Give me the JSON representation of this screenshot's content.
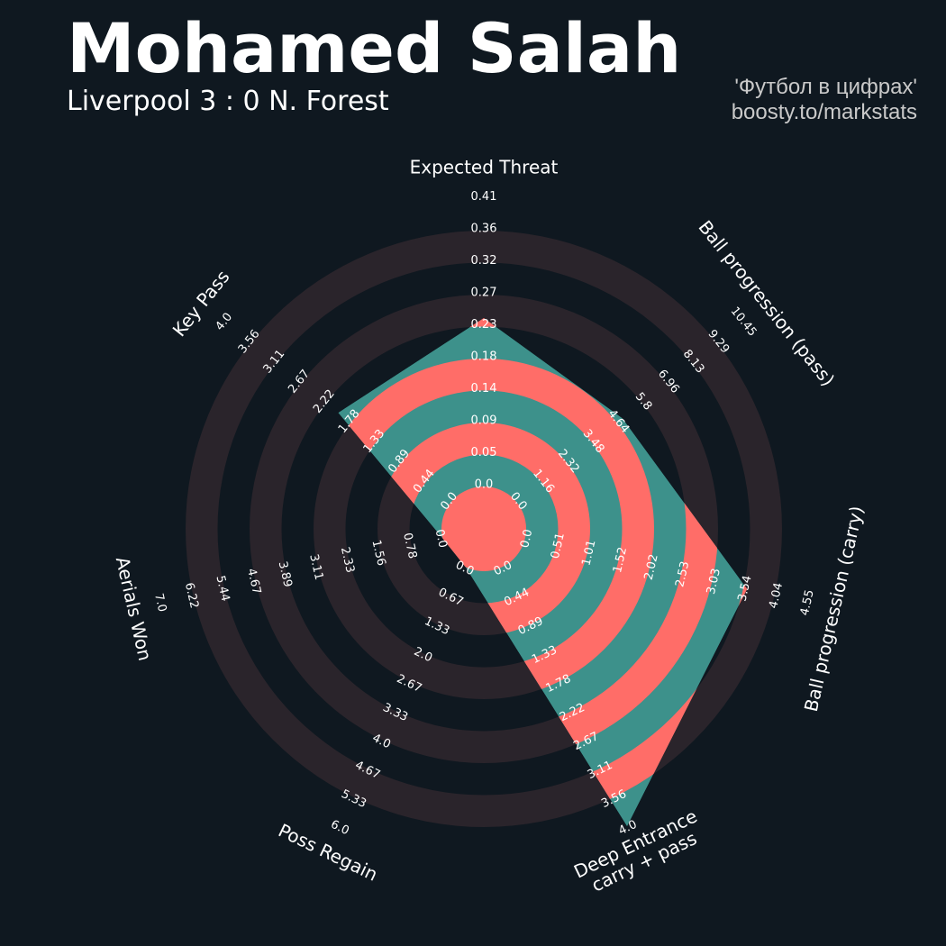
{
  "header": {
    "title": "Mohamed Salah",
    "subtitle": "Liverpool 3 : 0 N. Forest",
    "credit_line1": "'Футбол в цифрах'",
    "credit_line2": "boosty.to/markstats"
  },
  "colors": {
    "background": "#0f1820",
    "ring_band": "#2a242b",
    "radar_teal": "#3d918b",
    "radar_coral": "#ff6d68",
    "text": "#ffffff",
    "credit": "#c9c9c9"
  },
  "chart_data": {
    "type": "radar",
    "title": "Mohamed Salah",
    "subtitle": "Liverpool 3 : 0 N. Forest",
    "params": [
      {
        "label": "Expected Threat",
        "value": 0.24,
        "ticks": [
          "0.0",
          "0.05",
          "0.09",
          "0.14",
          "0.18",
          "0.23",
          "0.27",
          "0.32",
          "0.36",
          "0.41"
        ]
      },
      {
        "label": "Ball progression (pass)",
        "value": 4.9,
        "ticks": [
          "0.0",
          "1.16",
          "2.32",
          "3.48",
          "4.64",
          "5.8",
          "6.96",
          "8.13",
          "9.29",
          "10.45"
        ]
      },
      {
        "label": "Ball progression (carry)",
        "value": 3.6,
        "ticks": [
          "0.0",
          "0.51",
          "1.01",
          "1.52",
          "2.02",
          "2.53",
          "3.03",
          "3.54",
          "4.04",
          "4.55"
        ]
      },
      {
        "label": "Deep Entrance\ncarry + pass",
        "value": 4.0,
        "ticks": [
          "0.0",
          "0.44",
          "0.89",
          "1.33",
          "1.78",
          "2.22",
          "2.67",
          "3.11",
          "3.56",
          "4.0"
        ]
      },
      {
        "label": "Poss Regain",
        "value": 0.0,
        "ticks": [
          "0.0",
          "0.67",
          "1.33",
          "2.0",
          "2.67",
          "3.33",
          "4.0",
          "4.67",
          "5.33",
          "6.0"
        ]
      },
      {
        "label": "Aerials Won",
        "value": 0.0,
        "ticks": [
          "0.0",
          "0.78",
          "1.56",
          "2.33",
          "3.11",
          "3.89",
          "4.67",
          "5.44",
          "6.22",
          "7.0"
        ]
      },
      {
        "label": "Key Pass",
        "value": 2.0,
        "ticks": [
          "0.0",
          "0.44",
          "0.89",
          "1.33",
          "1.78",
          "2.22",
          "2.67",
          "3.11",
          "3.56",
          "4.0"
        ]
      }
    ],
    "grid": true,
    "legend": "none"
  }
}
